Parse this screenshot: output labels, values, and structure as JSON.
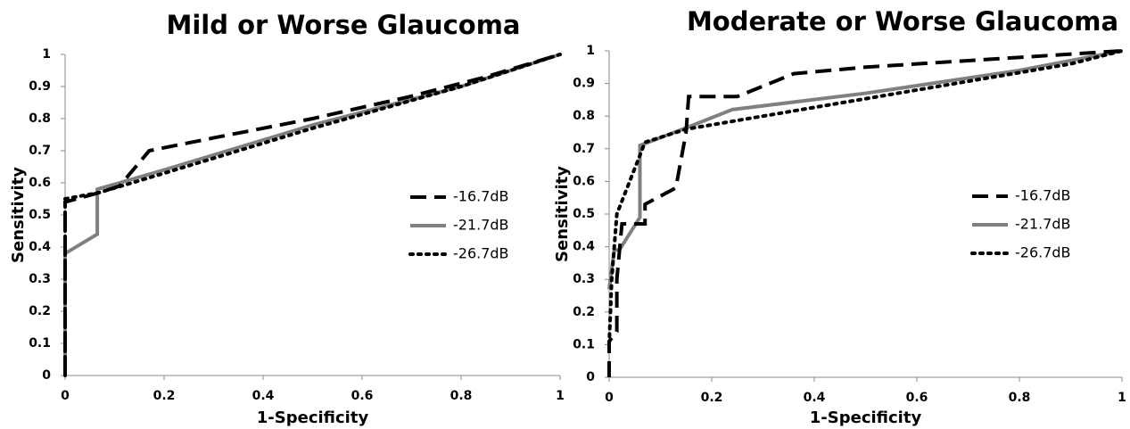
{
  "chart_data": [
    {
      "type": "line",
      "title": "Mild or Worse Glaucoma",
      "x_label": "1-Specificity",
      "y_label": "Sensitivity",
      "xlim": [
        0,
        1
      ],
      "ylim": [
        0,
        1
      ],
      "xticks": [
        0,
        0.2,
        0.4,
        0.6,
        0.8,
        1
      ],
      "yticks": [
        0,
        0.1,
        0.2,
        0.3,
        0.4,
        0.5,
        0.6,
        0.7,
        0.8,
        0.9,
        1
      ],
      "legend": "right",
      "series": [
        {
          "name": "-16.7dB",
          "color": "#000000",
          "style": "dashed",
          "x": [
            0,
            0,
            0.07,
            0.11,
            0.17,
            0.3,
            0.5,
            0.7,
            0.85,
            1
          ],
          "values": [
            0,
            0.54,
            0.57,
            0.59,
            0.7,
            0.74,
            0.8,
            0.87,
            0.93,
            1
          ]
        },
        {
          "name": "-21.7dB",
          "color": "#808080",
          "style": "solid",
          "x": [
            0,
            0,
            0.065,
            0.065,
            0.2,
            0.5,
            0.8,
            1
          ],
          "values": [
            0,
            0.38,
            0.44,
            0.58,
            0.64,
            0.78,
            0.9,
            1
          ]
        },
        {
          "name": "-26.7dB",
          "color": "#000000",
          "style": "dotted",
          "x": [
            0,
            0,
            0.07,
            0.2,
            0.5,
            0.8,
            1
          ],
          "values": [
            0,
            0.55,
            0.57,
            0.63,
            0.77,
            0.9,
            1
          ]
        }
      ]
    },
    {
      "type": "line",
      "title": "Moderate or Worse Glaucoma",
      "x_label": "1-Specificity",
      "y_label": "Sensitivity",
      "xlim": [
        0,
        1
      ],
      "ylim": [
        0,
        1
      ],
      "xticks": [
        0,
        0.2,
        0.4,
        0.6,
        0.8,
        1
      ],
      "yticks": [
        0,
        0.1,
        0.2,
        0.3,
        0.4,
        0.5,
        0.6,
        0.7,
        0.8,
        0.9,
        1
      ],
      "legend": "right",
      "series": [
        {
          "name": "-16.7dB",
          "color": "#000000",
          "style": "dashed",
          "x": [
            0,
            0,
            0.015,
            0.015,
            0.025,
            0.07,
            0.07,
            0.13,
            0.15,
            0.155,
            0.25,
            0.36,
            0.5,
            0.8,
            1
          ],
          "values": [
            0,
            0.11,
            0.14,
            0.3,
            0.47,
            0.47,
            0.53,
            0.58,
            0.75,
            0.86,
            0.86,
            0.93,
            0.95,
            0.98,
            1
          ]
        },
        {
          "name": "-21.7dB",
          "color": "#808080",
          "style": "solid",
          "x": [
            0,
            0.01,
            0.02,
            0.06,
            0.06,
            0.16,
            0.24,
            0.5,
            0.8,
            1
          ],
          "values": [
            0.27,
            0.39,
            0.39,
            0.49,
            0.71,
            0.77,
            0.82,
            0.87,
            0.94,
            1
          ]
        },
        {
          "name": "-26.7dB",
          "color": "#000000",
          "style": "dotted",
          "x": [
            0,
            0.005,
            0.015,
            0.04,
            0.07,
            0.15,
            0.3,
            0.6,
            0.9,
            1
          ],
          "values": [
            0.1,
            0.3,
            0.5,
            0.6,
            0.72,
            0.76,
            0.8,
            0.88,
            0.96,
            1
          ]
        }
      ]
    }
  ]
}
